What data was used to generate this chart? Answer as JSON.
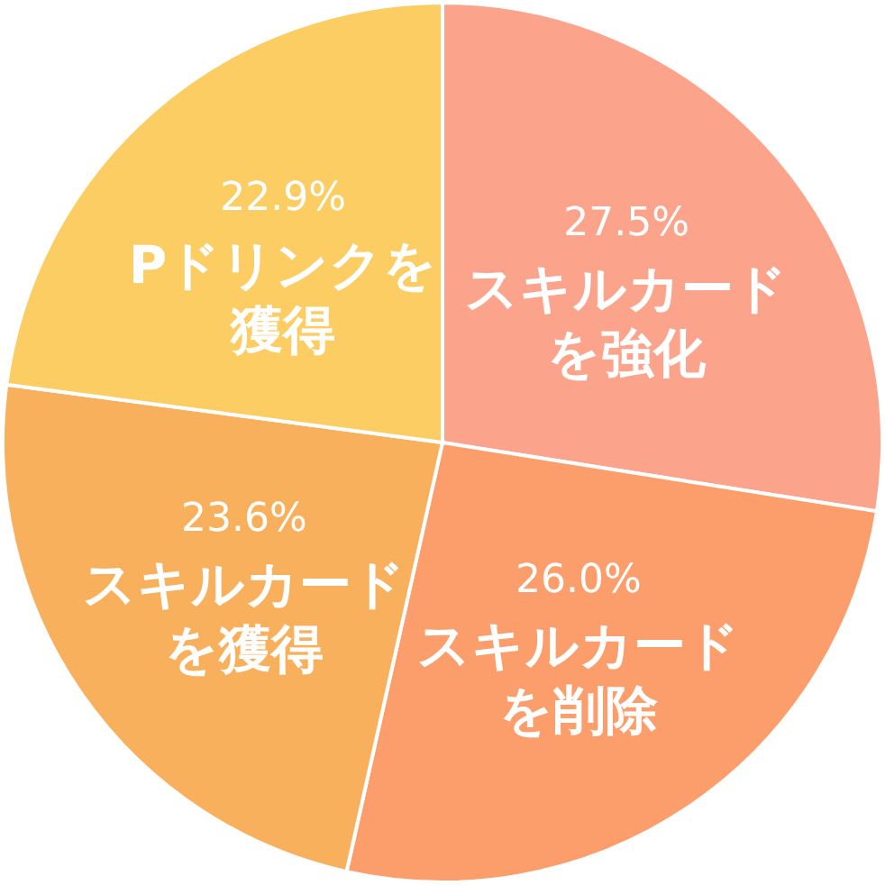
{
  "chart_data": {
    "type": "pie",
    "categories": [
      "スキルカードを強化",
      "スキルカードを削除",
      "スキルカードを獲得",
      "Pドリンクを獲得"
    ],
    "values": [
      27.5,
      26.0,
      23.6,
      22.9
    ],
    "value_labels": [
      "27.5%",
      "26.0%",
      "23.6%",
      "22.9%"
    ],
    "colors": [
      "#fca38c",
      "#fb9e6c",
      "#f9b05c",
      "#fbcd62"
    ]
  }
}
